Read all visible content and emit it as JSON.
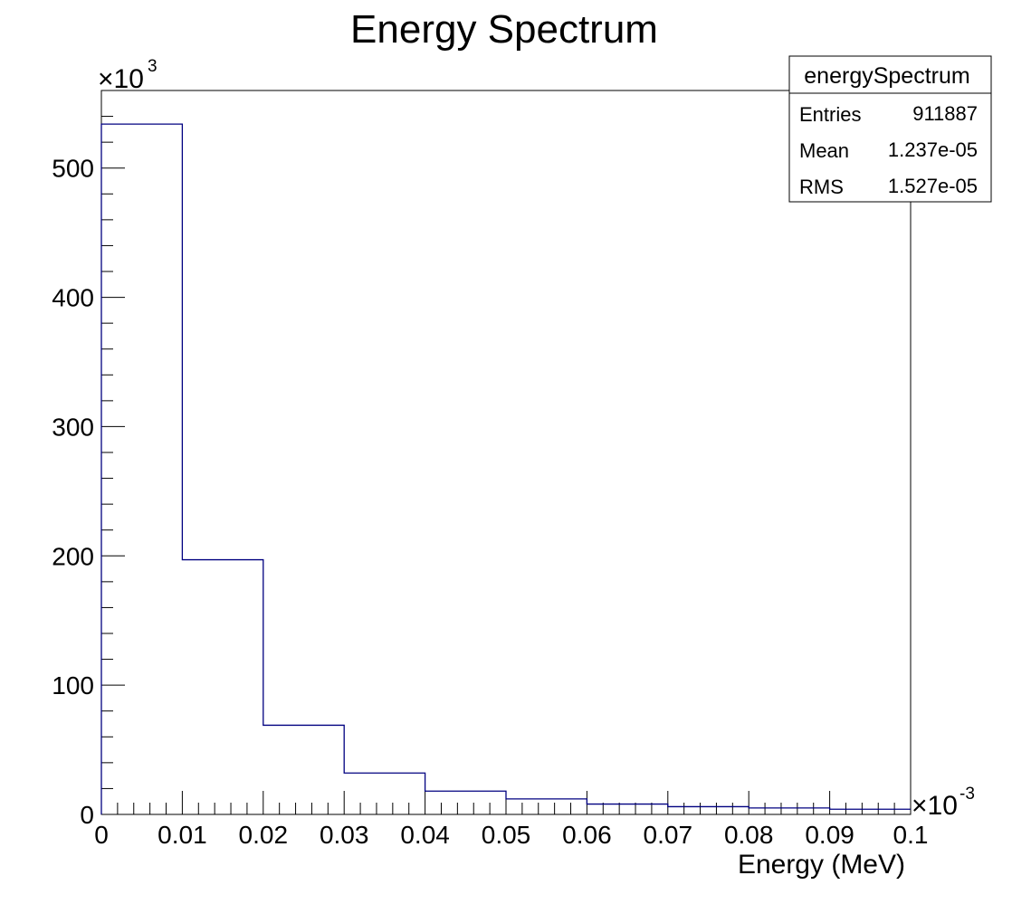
{
  "chart_data": {
    "type": "bar",
    "title": "Energy Spectrum",
    "xlabel": "Energy (MeV)",
    "ylabel": "",
    "x_multiplier": "×10",
    "x_exponent": "-3",
    "y_multiplier": "×10",
    "y_exponent": "3",
    "bin_edges": [
      0,
      0.01,
      0.02,
      0.03,
      0.04,
      0.05,
      0.06,
      0.07,
      0.08,
      0.09,
      0.1
    ],
    "values": [
      534,
      197,
      69,
      32,
      18,
      12,
      8,
      6,
      5,
      4
    ],
    "xlim": [
      0,
      0.1
    ],
    "ylim": [
      0,
      560
    ],
    "x_ticks": [
      "0",
      "0.01",
      "0.02",
      "0.03",
      "0.04",
      "0.05",
      "0.06",
      "0.07",
      "0.08",
      "0.09",
      "0.1"
    ],
    "y_ticks": [
      "0",
      "100",
      "200",
      "300",
      "400",
      "500"
    ],
    "line_color": "#000080",
    "grid": false,
    "legend_position": "top-right"
  },
  "stats_box": {
    "title": "energySpectrum",
    "rows": [
      {
        "label": "Entries",
        "value": "911887"
      },
      {
        "label": "Mean",
        "value": "1.237e-05"
      },
      {
        "label": "RMS",
        "value": "1.527e-05"
      }
    ]
  }
}
